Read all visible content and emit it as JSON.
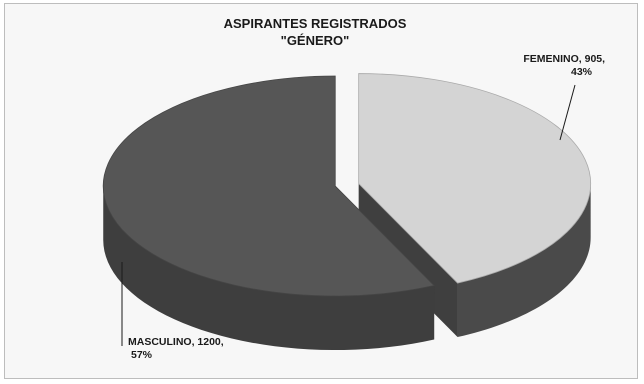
{
  "chart_data": {
    "type": "pie",
    "title": "ASPIRANTES REGISTRADOS",
    "subtitle": "\"GÉNERO\"",
    "slices": [
      {
        "name": "FEMENINO",
        "value": 905,
        "percent": 43,
        "color": "#d4d4d4",
        "side_color": "#4a4a4a",
        "label_lines": [
          "FEMENINO, 905,",
          "43%"
        ]
      },
      {
        "name": "MASCULINO",
        "value": 1200,
        "percent": 57,
        "color": "#565656",
        "side_color": "#3e3e3e",
        "label_lines": [
          "MASCULINO, 1200,",
          "57%"
        ]
      }
    ],
    "legend": "none",
    "style": "3d-exploded",
    "start_angle": "top",
    "direction": "clockwise"
  }
}
